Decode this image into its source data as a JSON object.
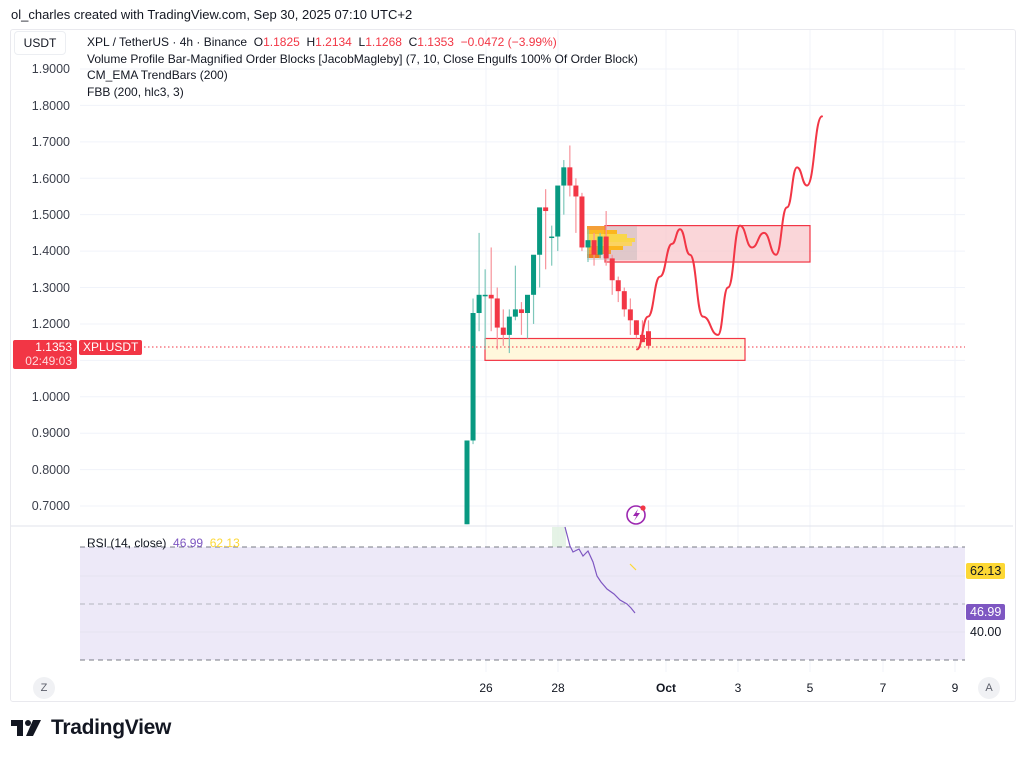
{
  "attribution": "ol_charles created with TradingView.com, Sep 30, 2025 07:10 UTC+2",
  "currency": "USDT",
  "header": {
    "symbol": "XPL / TetherUS · 4h · Binance",
    "o_label": "O",
    "o_value": "1.1825",
    "h_label": "H",
    "h_value": "1.2134",
    "l_label": "L",
    "l_value": "1.1268",
    "c_label": "C",
    "c_value": "1.1353",
    "change": "−0.0472 (−3.99%)"
  },
  "indicators": [
    "Volume Profile Bar-Magnified Order Blocks [JacobMagleby] (7, 10, Close Engulfs 100% Of Order Block)",
    "CM_EMA TrendBars (200)",
    "FBB (200, hlc3, 3)"
  ],
  "price_axis": {
    "ticks": [
      "1.9000",
      "1.8000",
      "1.7000",
      "1.6000",
      "1.5000",
      "1.4000",
      "1.3000",
      "1.2000",
      "1.0000",
      "0.9000",
      "0.8000",
      "0.7000"
    ]
  },
  "last_price": {
    "value": "1.1353",
    "countdown": "02:49:03",
    "symbol_tag": "XPLUSDT"
  },
  "rsi": {
    "label": "RSI (14, close)",
    "value": "46.99",
    "ma_value": "62.13",
    "level_label": "40.00",
    "value_color": "#7e57c2",
    "ma_color": "#fdd835"
  },
  "time_axis": {
    "ticks": [
      "26",
      "28",
      "Oct",
      "3",
      "5",
      "7",
      "9"
    ]
  },
  "buttons": {
    "zoom_label": "Z",
    "auto_label": "A"
  },
  "brand": "TradingView",
  "colors": {
    "up": "#089981",
    "down": "#f23645",
    "rsi_bg": "#ede9f8",
    "demand_zone": "#fff8dc",
    "supply_zone": "#f8c8cc"
  },
  "chart_data": {
    "type": "candlestick",
    "title": "XPL / TetherUS · 4h · Binance",
    "ylabel": "USDT",
    "ylim": [
      0.65,
      1.95
    ],
    "xlabel_ticks": [
      "26",
      "28",
      "Oct",
      "3",
      "5",
      "7",
      "9"
    ],
    "candles": [
      {
        "o": 0.65,
        "h": 0.88,
        "l": 0.65,
        "c": 0.88
      },
      {
        "o": 0.88,
        "h": 1.27,
        "l": 0.87,
        "c": 1.23
      },
      {
        "o": 1.23,
        "h": 1.45,
        "l": 1.18,
        "c": 1.28
      },
      {
        "o": 1.28,
        "h": 1.35,
        "l": 1.13,
        "c": 1.28
      },
      {
        "o": 1.28,
        "h": 1.41,
        "l": 1.18,
        "c": 1.27
      },
      {
        "o": 1.27,
        "h": 1.3,
        "l": 1.13,
        "c": 1.19
      },
      {
        "o": 1.19,
        "h": 1.24,
        "l": 1.14,
        "c": 1.17
      },
      {
        "o": 1.17,
        "h": 1.24,
        "l": 1.12,
        "c": 1.22
      },
      {
        "o": 1.22,
        "h": 1.36,
        "l": 1.21,
        "c": 1.24
      },
      {
        "o": 1.24,
        "h": 1.26,
        "l": 1.17,
        "c": 1.23
      },
      {
        "o": 1.23,
        "h": 1.25,
        "l": 1.16,
        "c": 1.28
      },
      {
        "o": 1.28,
        "h": 1.38,
        "l": 1.2,
        "c": 1.39
      },
      {
        "o": 1.39,
        "h": 1.44,
        "l": 1.3,
        "c": 1.52
      },
      {
        "o": 1.52,
        "h": 1.57,
        "l": 1.35,
        "c": 1.51
      },
      {
        "o": 1.44,
        "h": 1.47,
        "l": 1.36,
        "c": 1.44
      },
      {
        "o": 1.44,
        "h": 1.54,
        "l": 1.4,
        "c": 1.58
      },
      {
        "o": 1.58,
        "h": 1.65,
        "l": 1.5,
        "c": 1.63
      },
      {
        "o": 1.63,
        "h": 1.69,
        "l": 1.55,
        "c": 1.58
      },
      {
        "o": 1.58,
        "h": 1.6,
        "l": 1.45,
        "c": 1.55
      },
      {
        "o": 1.55,
        "h": 1.56,
        "l": 1.4,
        "c": 1.41
      },
      {
        "o": 1.41,
        "h": 1.46,
        "l": 1.37,
        "c": 1.43
      },
      {
        "o": 1.43,
        "h": 1.45,
        "l": 1.36,
        "c": 1.39
      },
      {
        "o": 1.39,
        "h": 1.45,
        "l": 1.38,
        "c": 1.44
      },
      {
        "o": 1.44,
        "h": 1.51,
        "l": 1.36,
        "c": 1.38
      },
      {
        "o": 1.38,
        "h": 1.39,
        "l": 1.28,
        "c": 1.32
      },
      {
        "o": 1.32,
        "h": 1.33,
        "l": 1.26,
        "c": 1.29
      },
      {
        "o": 1.29,
        "h": 1.3,
        "l": 1.22,
        "c": 1.24
      },
      {
        "o": 1.24,
        "h": 1.27,
        "l": 1.17,
        "c": 1.21
      },
      {
        "o": 1.21,
        "h": 1.21,
        "l": 1.16,
        "c": 1.17
      },
      {
        "o": 1.17,
        "h": 1.21,
        "l": 1.15,
        "c": 1.15
      },
      {
        "o": 1.18,
        "h": 1.21,
        "l": 1.13,
        "c": 1.14
      }
    ],
    "zones": [
      {
        "type": "demand",
        "top": 1.16,
        "bottom": 1.1
      },
      {
        "type": "supply",
        "top": 1.47,
        "bottom": 1.37
      }
    ],
    "projection_path_prices": [
      1.13,
      1.22,
      1.33,
      1.42,
      1.46,
      1.39,
      1.22,
      1.17,
      1.3,
      1.47,
      1.41,
      1.45,
      1.39,
      1.52,
      1.63,
      1.58,
      1.77
    ],
    "rsi_series": {
      "name": "RSI (14, close)",
      "last": 46.99,
      "ma": 62.13,
      "upper_band": 70,
      "lower_band": 30
    }
  }
}
